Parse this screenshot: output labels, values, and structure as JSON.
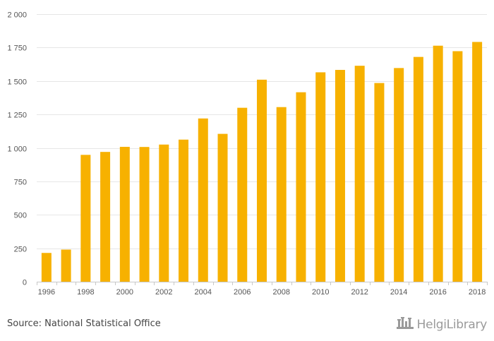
{
  "chart_data": {
    "type": "bar",
    "categories": [
      "1996",
      "1997",
      "1998",
      "1999",
      "2000",
      "2001",
      "2002",
      "2003",
      "2004",
      "2005",
      "2006",
      "2007",
      "2008",
      "2009",
      "2010",
      "2011",
      "2012",
      "2013",
      "2014",
      "2015",
      "2016",
      "2017",
      "2018"
    ],
    "x_tick_labels": [
      "1996",
      "1998",
      "2000",
      "2002",
      "2004",
      "2006",
      "2008",
      "2010",
      "2012",
      "2014",
      "2016",
      "2018"
    ],
    "values": [
      215,
      240,
      948,
      970,
      1008,
      1007,
      1025,
      1062,
      1220,
      1105,
      1300,
      1510,
      1305,
      1416,
      1565,
      1583,
      1614,
      1485,
      1597,
      1680,
      1764,
      1723,
      1792
    ],
    "y_tick_labels": [
      "0",
      "250",
      "500",
      "750",
      "1 000",
      "1 250",
      "1 500",
      "1 750",
      "2 000"
    ],
    "ylim": [
      0,
      2000
    ],
    "title": "",
    "xlabel": "",
    "ylabel": "",
    "grid": true,
    "legend": "none",
    "bar_color": "#F7B100",
    "grid_color": "#E6E6E6"
  },
  "footer": {
    "source": "Source: National Statistical Office",
    "brand": "HelgiLibrary",
    "brand_icon": "castle-logo"
  }
}
